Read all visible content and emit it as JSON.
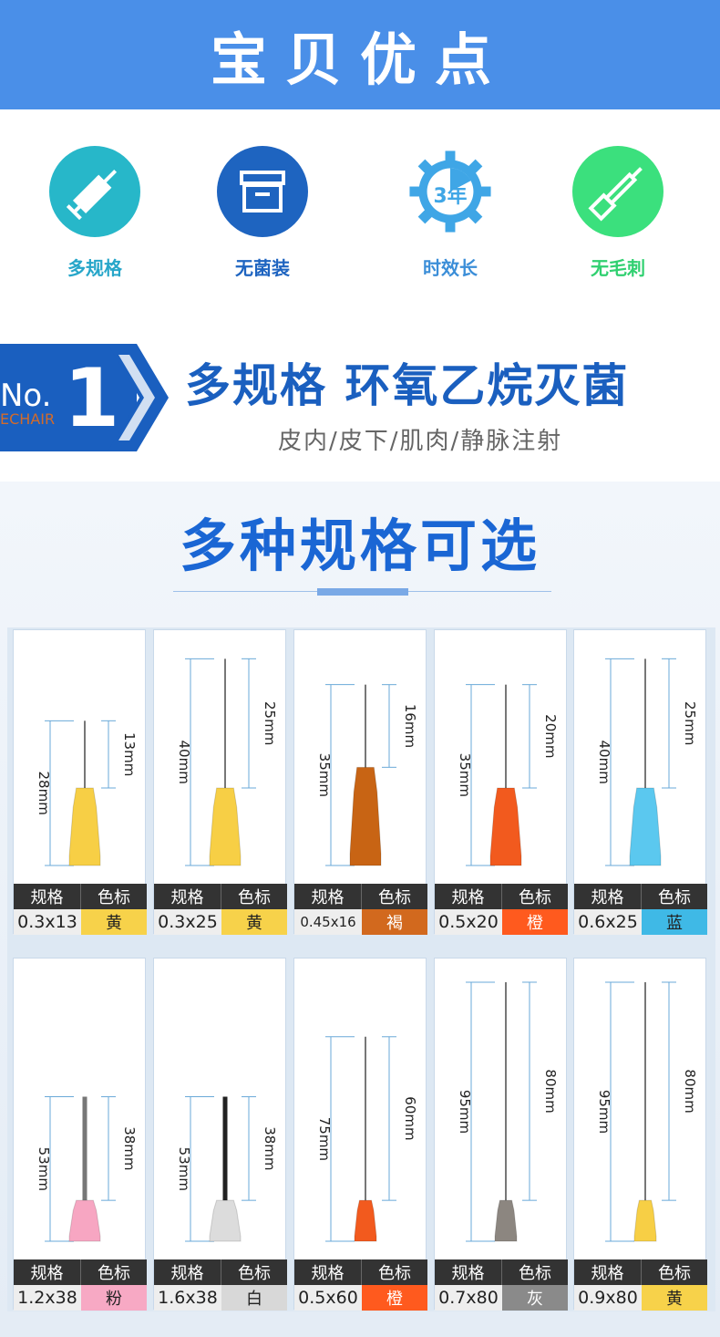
{
  "banner": {
    "title": "宝贝优点"
  },
  "features": [
    {
      "label": "多规格",
      "icon": "syringe-icon",
      "color": "#27b7c9",
      "label_color": "#27a6c9"
    },
    {
      "label": "无菌装",
      "icon": "box-icon",
      "color": "#1e64c0",
      "label_color": "#1e64c0"
    },
    {
      "label": "时效长",
      "icon": "gear-3year-icon",
      "badge": "3年",
      "color": "#3fa6e6",
      "label_color": "#3b8ed8"
    },
    {
      "label": "无毛刺",
      "icon": "needle-icon",
      "color": "#3be07d",
      "label_color": "#30d070"
    }
  ],
  "no1": {
    "badge_no": "No.",
    "badge_num": "1",
    "badge_sub": "ECHAIR",
    "title": "多规格 环氧乙烷灭菌",
    "subtitle": "皮内/皮下/肌肉/静脉注射"
  },
  "specs_section": {
    "title": "多种规格可选",
    "header_spec": "规格",
    "header_color": "色标"
  },
  "needles": [
    {
      "spec": "0.3x13",
      "color_name": "黄",
      "swatch": "#f7d24a",
      "hub": "#f7cf45",
      "total_len": "28mm",
      "needle_len": "13mm",
      "total": 28,
      "needle": 13
    },
    {
      "spec": "0.3x25",
      "color_name": "黄",
      "swatch": "#f7d24a",
      "hub": "#f7cf45",
      "total_len": "40mm",
      "needle_len": "25mm",
      "total": 40,
      "needle": 25
    },
    {
      "spec": "0.45x16",
      "color_name": "褐",
      "swatch": "#d2691e",
      "hub": "#c86414",
      "total_len": "35mm",
      "needle_len": "16mm",
      "total": 35,
      "needle": 16
    },
    {
      "spec": "0.5x20",
      "color_name": "橙",
      "swatch": "#ff5a1e",
      "hub": "#f25a1e",
      "total_len": "35mm",
      "needle_len": "20mm",
      "total": 35,
      "needle": 20
    },
    {
      "spec": "0.6x25",
      "color_name": "蓝",
      "swatch": "#3fb9e6",
      "hub": "#5bc8ef",
      "total_len": "40mm",
      "needle_len": "25mm",
      "total": 40,
      "needle": 25
    },
    {
      "spec": "1.2x38",
      "color_name": "粉",
      "swatch": "#f7a9c4",
      "hub": "#f7a6c2",
      "total_len": "53mm",
      "needle_len": "38mm",
      "total": 53,
      "needle": 38
    },
    {
      "spec": "1.6x38",
      "color_name": "白",
      "swatch": "#d8d8d8",
      "hub": "#dcdcdc",
      "total_len": "53mm",
      "needle_len": "38mm",
      "total": 53,
      "needle": 38
    },
    {
      "spec": "0.5x60",
      "color_name": "橙",
      "swatch": "#ff5a1e",
      "hub": "#f25a1e",
      "total_len": "75mm",
      "needle_len": "60mm",
      "total": 75,
      "needle": 60
    },
    {
      "spec": "0.7x80",
      "color_name": "灰",
      "swatch": "#8a8a8a",
      "hub": "#8c8680",
      "total_len": "95mm",
      "needle_len": "80mm",
      "total": 95,
      "needle": 80
    },
    {
      "spec": "0.9x80",
      "color_name": "黄",
      "swatch": "#f7d24a",
      "hub": "#f7cf45",
      "total_len": "95mm",
      "needle_len": "80mm",
      "total": 95,
      "needle": 80
    }
  ]
}
